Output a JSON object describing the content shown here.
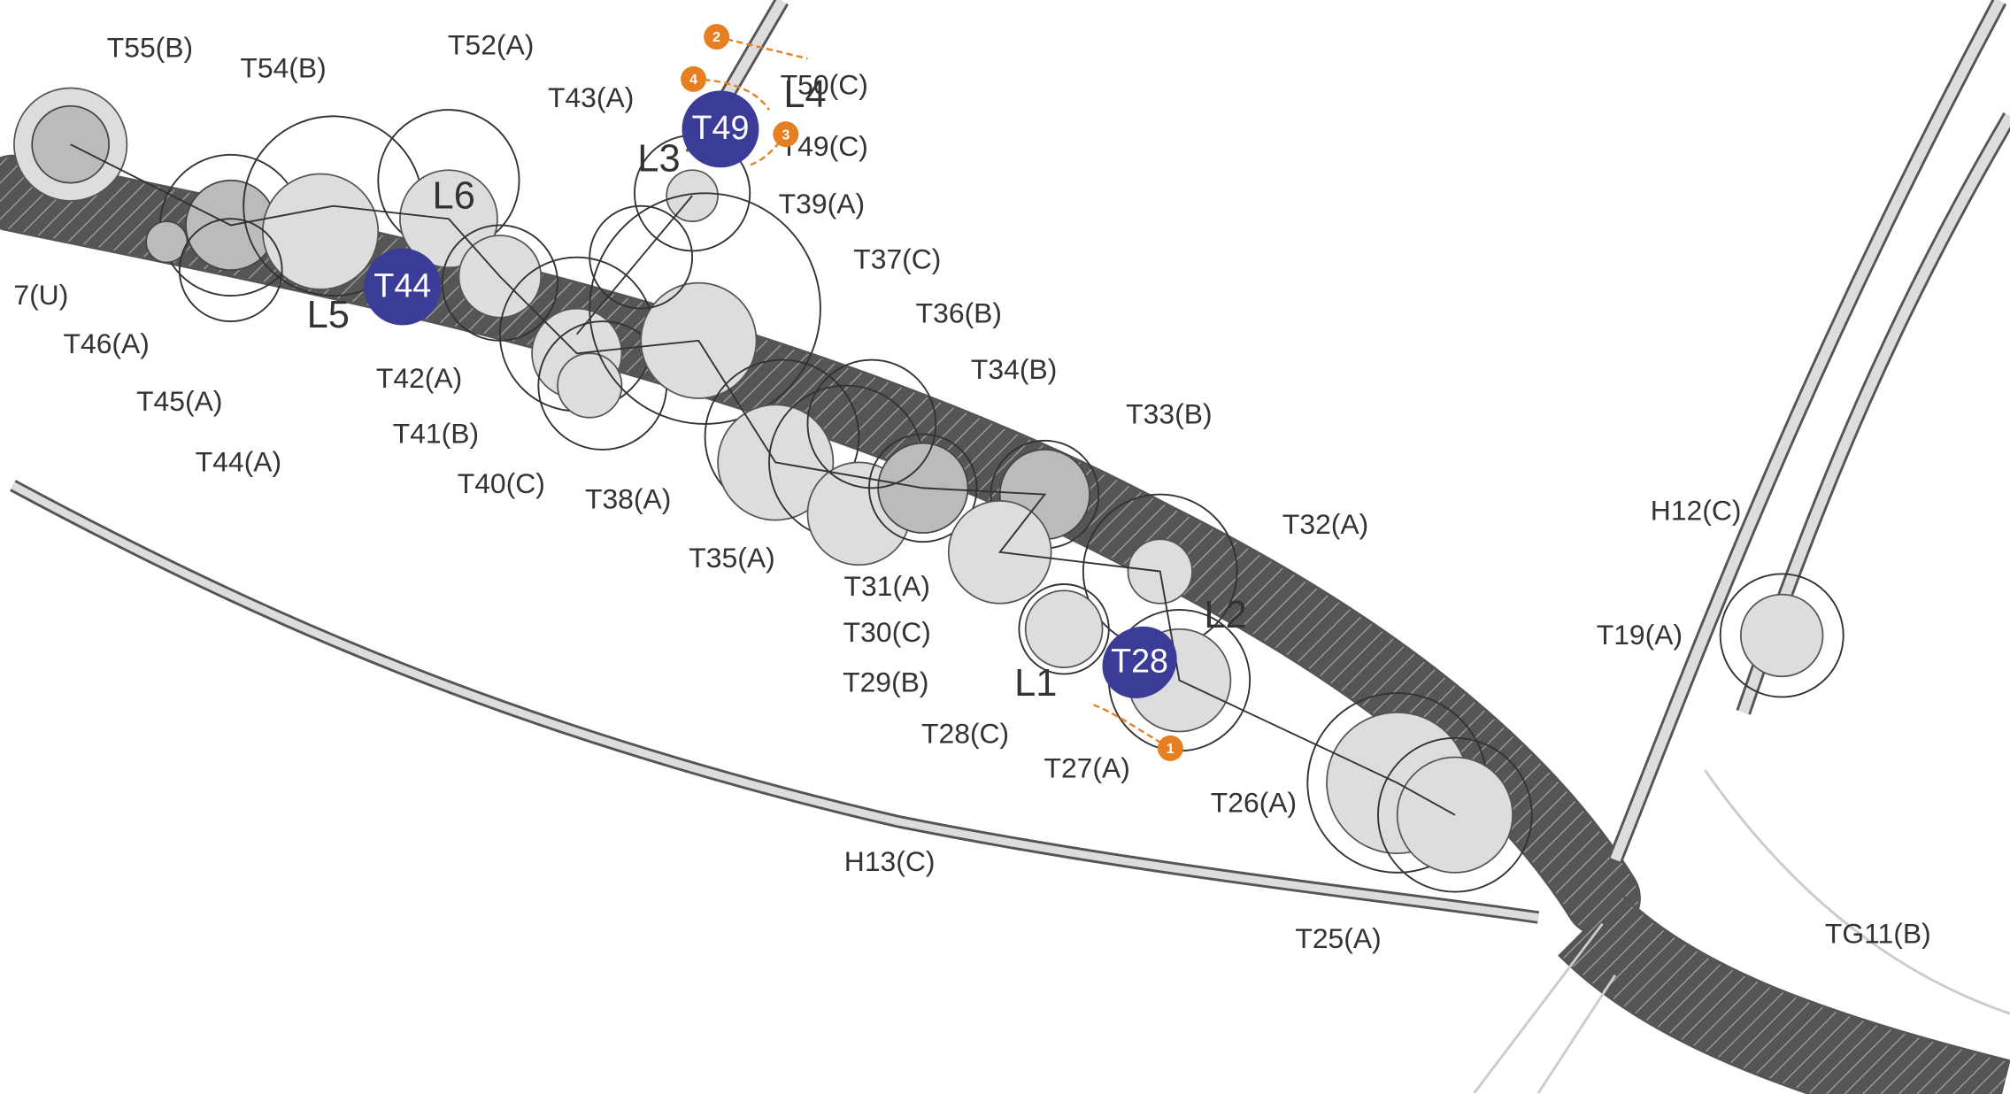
{
  "labels": [
    "T55(B)",
    "T54(B)",
    "T52(A)",
    "T43(A)",
    "T50(C)",
    "T49(C)",
    "T39(A)",
    "T37(C)",
    "T36(B)",
    "T34(B)",
    "T33(B)",
    "T32(A)",
    "H12(C)",
    "T19(A)",
    "7(U)",
    "T46(A)",
    "T45(A)",
    "T44(A)",
    "T42(A)",
    "T41(B)",
    "T40(C)",
    "T38(A)",
    "T35(A)",
    "T31(A)",
    "T30(C)",
    "T29(B)",
    "T28(C)",
    "T27(A)",
    "T26(A)",
    "H13(C)",
    "T25(A)",
    "TG11(B)"
  ],
  "lines": [
    "L1",
    "L2",
    "L3",
    "L4",
    "L5",
    "L6"
  ],
  "markers": [
    "T49",
    "T44",
    "T28"
  ],
  "steps": [
    "1",
    "2",
    "3",
    "4"
  ]
}
